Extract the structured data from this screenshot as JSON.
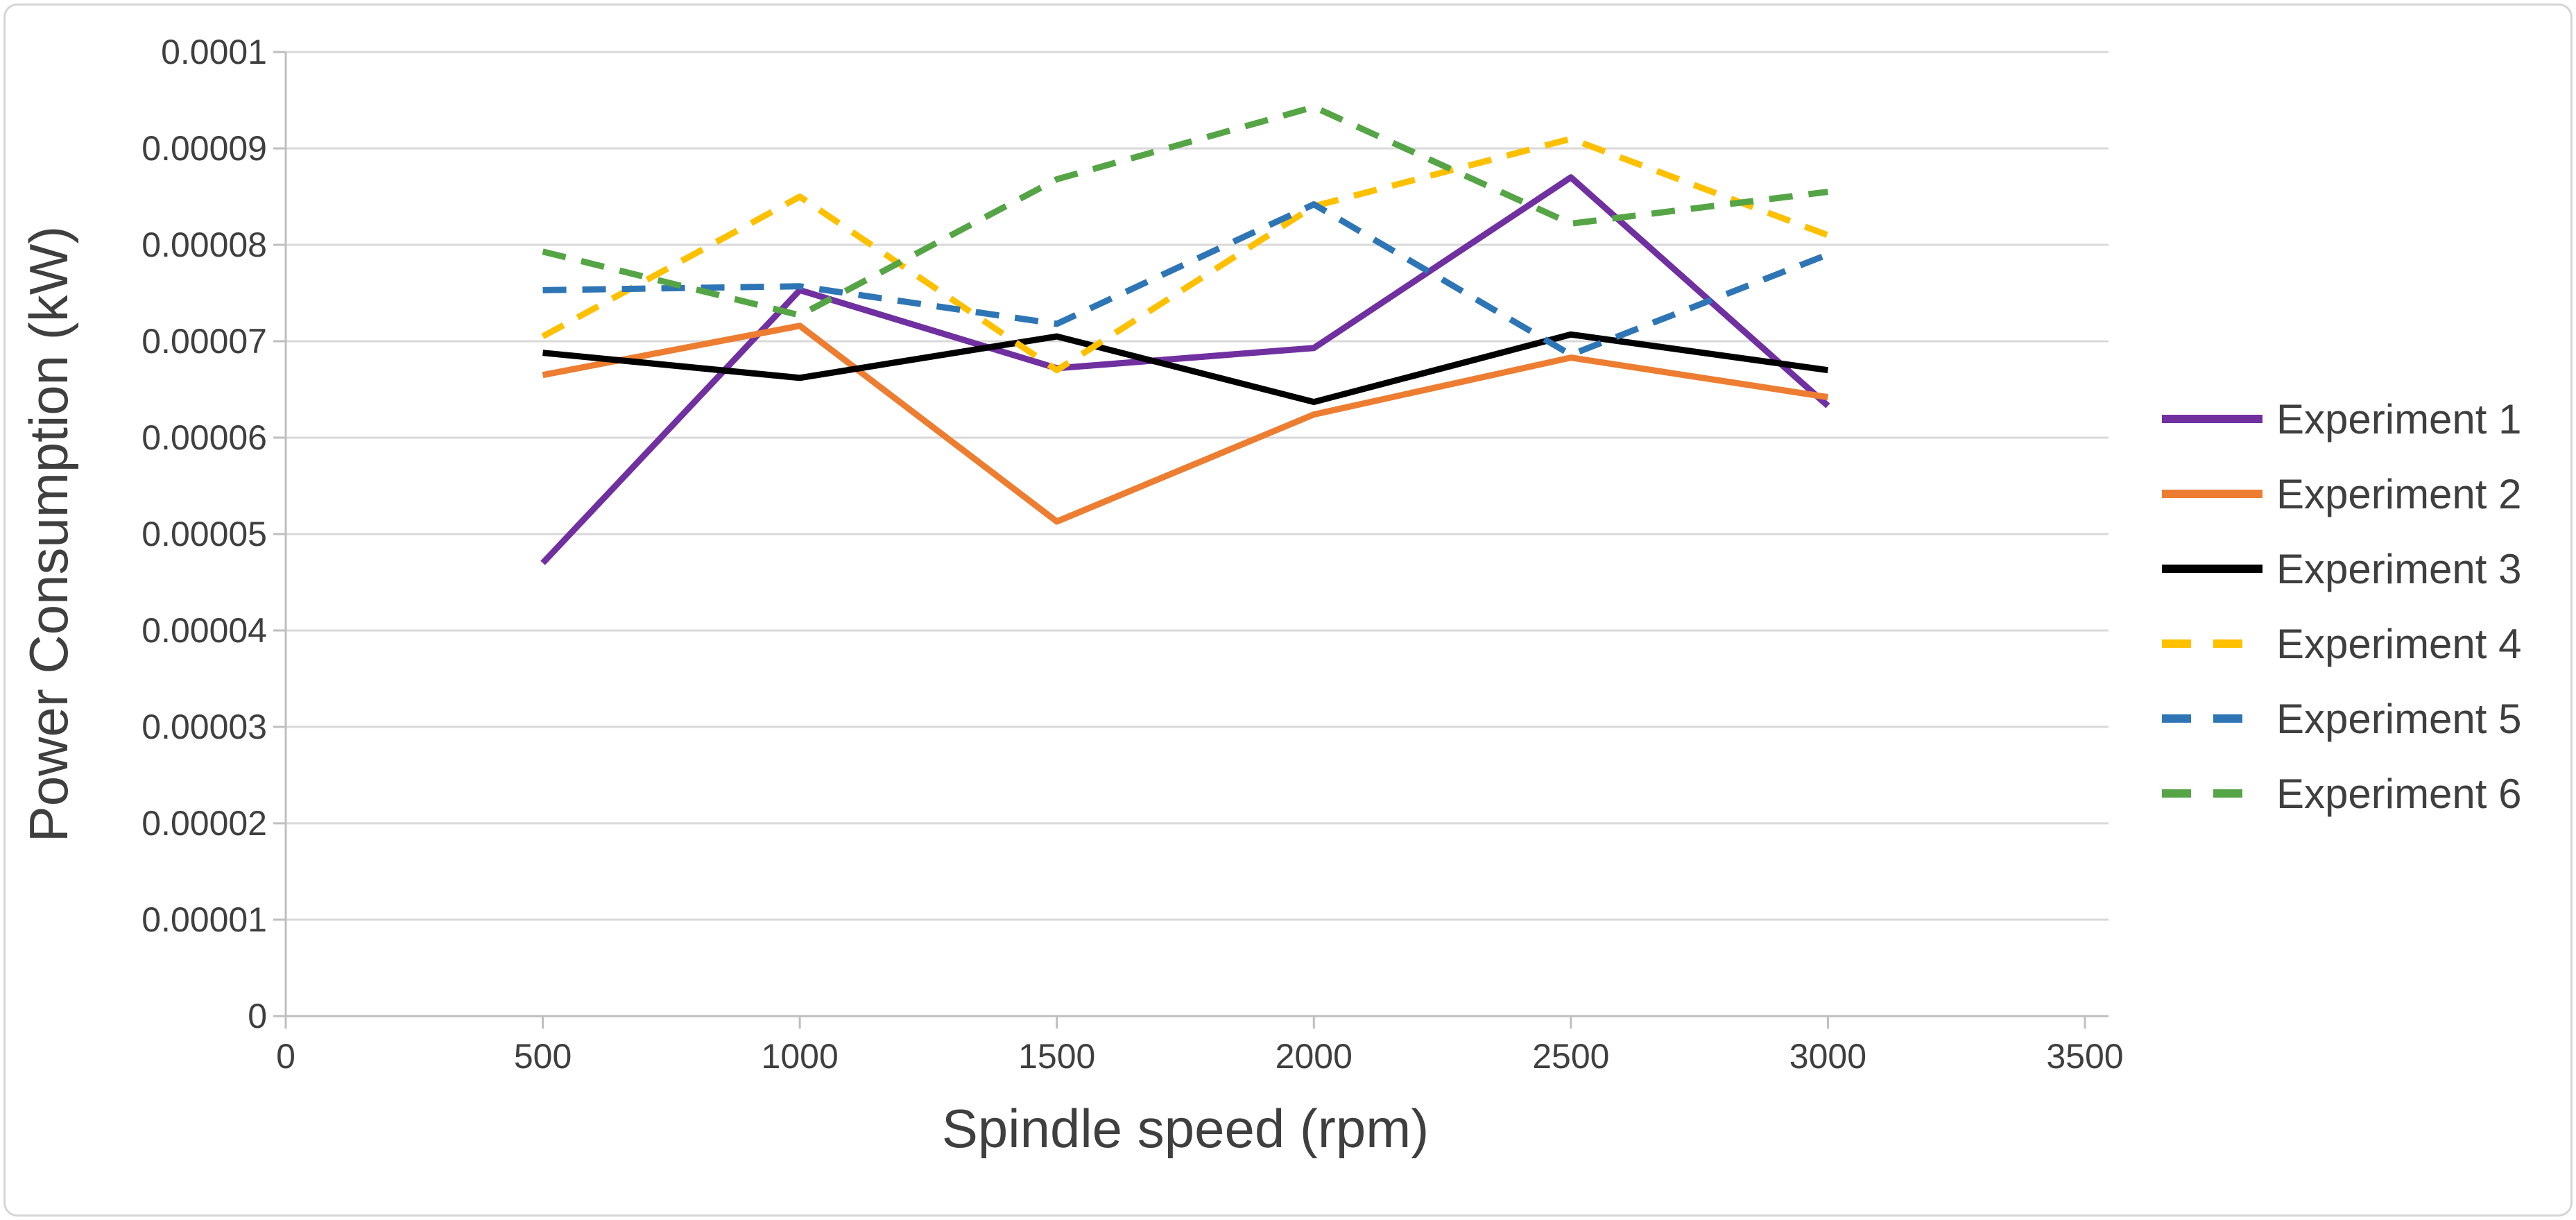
{
  "chart_data": {
    "type": "line",
    "title": "",
    "xlabel": "Spindle speed (rpm)",
    "ylabel": "Power Consumption (kW)",
    "xlim": [
      0,
      3500
    ],
    "ylim": [
      0,
      0.0001
    ],
    "grid": "horizontal",
    "legend_position": "right",
    "x": [
      500,
      1000,
      1500,
      2000,
      2500,
      3000
    ],
    "x_tick_values": [
      0,
      500,
      1000,
      1500,
      2000,
      2500,
      3000,
      3500
    ],
    "x_tick_labels": [
      "0",
      "500",
      "1000",
      "1500",
      "2000",
      "2500",
      "3000",
      "3500"
    ],
    "y_tick_values": [
      0,
      1e-05,
      2e-05,
      3e-05,
      4e-05,
      5e-05,
      6e-05,
      7e-05,
      8e-05,
      9e-05,
      0.0001
    ],
    "y_tick_labels": [
      "0",
      "0.00001",
      "0.00002",
      "0.00003",
      "0.00004",
      "0.00005",
      "0.00006",
      "0.00007",
      "0.00008",
      "0.00009",
      "0.0001"
    ],
    "series": [
      {
        "name": "Experiment 1",
        "color": "#7030A0",
        "style": "solid",
        "values": [
          4.7e-05,
          7.53e-05,
          6.72e-05,
          6.93e-05,
          8.7e-05,
          6.33e-05
        ]
      },
      {
        "name": "Experiment 2",
        "color": "#ED7D31",
        "style": "solid",
        "values": [
          6.65e-05,
          7.16e-05,
          5.13e-05,
          6.24e-05,
          6.83e-05,
          6.42e-05
        ]
      },
      {
        "name": "Experiment 3",
        "color": "#000000",
        "style": "solid",
        "values": [
          6.88e-05,
          6.62e-05,
          7.05e-05,
          6.37e-05,
          7.07e-05,
          6.7e-05
        ]
      },
      {
        "name": "Experiment 4",
        "color": "#FFC000",
        "style": "dashed",
        "values": [
          7.05e-05,
          8.5e-05,
          6.7e-05,
          8.4e-05,
          9.1e-05,
          8.1e-05
        ]
      },
      {
        "name": "Experiment 5",
        "color": "#2E75B6",
        "style": "dashed",
        "values": [
          7.53e-05,
          7.57e-05,
          7.18e-05,
          8.42e-05,
          6.86e-05,
          7.9e-05
        ]
      },
      {
        "name": "Experiment 6",
        "color": "#55A546",
        "style": "dashed",
        "values": [
          7.93e-05,
          7.27e-05,
          8.68e-05,
          9.43e-05,
          8.22e-05,
          8.55e-05
        ]
      }
    ],
    "colors": {
      "gridline": "#D9D9D9",
      "axis": "#BFBFBF",
      "tick_text": "#3f3f3f",
      "title_text": "#3f3f3f"
    }
  }
}
